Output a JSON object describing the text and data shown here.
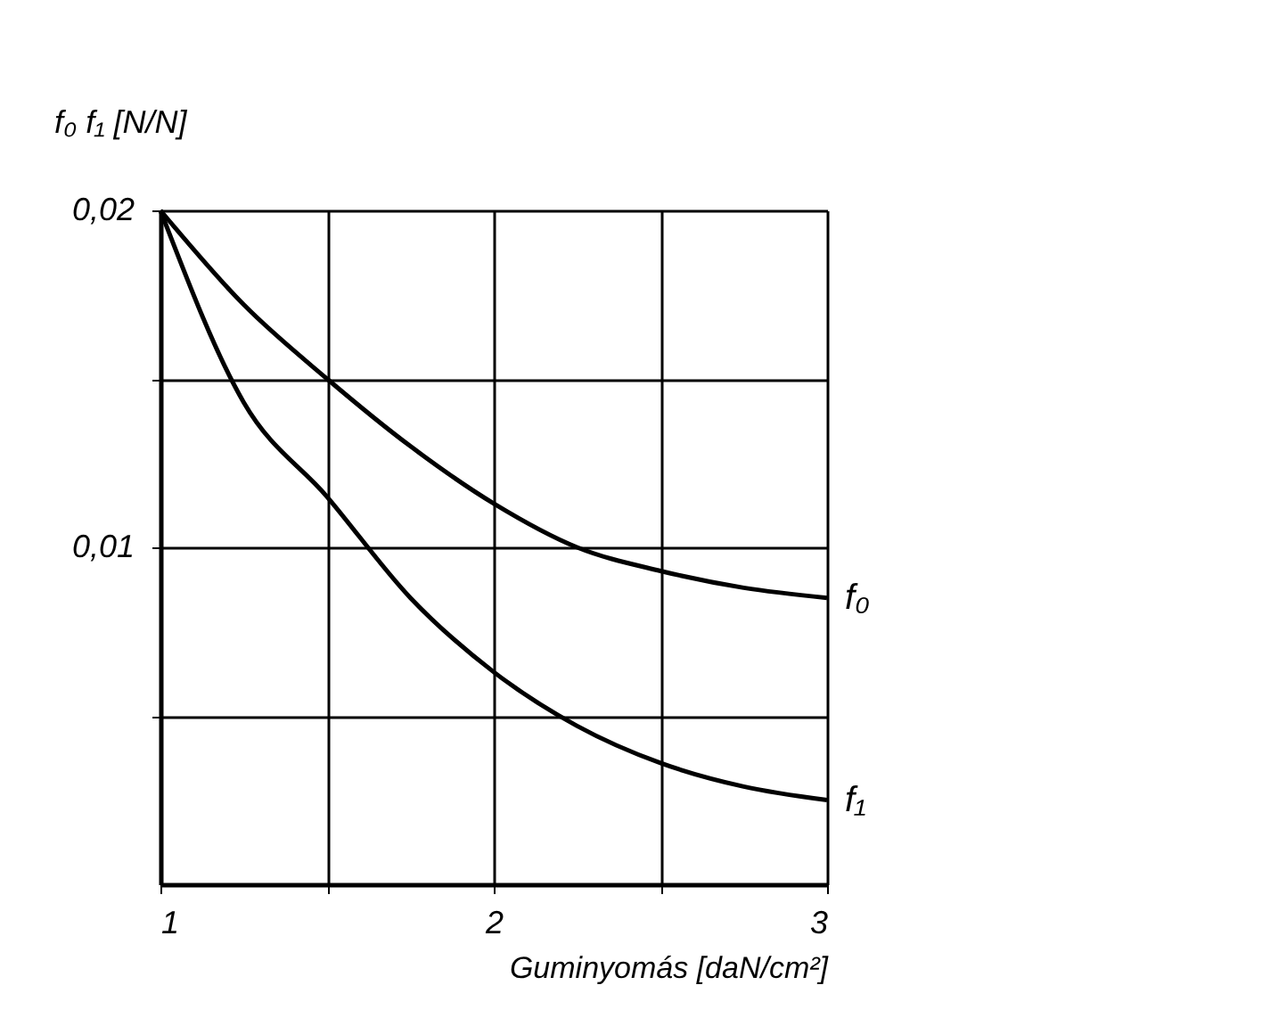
{
  "chart_data": {
    "type": "line",
    "ylabel": "f₀ f₁ [N/N]",
    "xlabel": "Guminyomás [daN/cm²]",
    "xlim": [
      1,
      3
    ],
    "xticks": [
      1,
      {
        "value": 1.5,
        "label": null
      },
      2,
      {
        "value": 2.5,
        "label": null
      },
      3
    ],
    "ylim": [
      0,
      0.02
    ],
    "yticks": [
      {
        "value": 0.005,
        "label": null
      },
      {
        "value": 0.01,
        "label": "0,01"
      },
      {
        "value": 0.015,
        "label": null
      },
      {
        "value": 0.02,
        "label": "0,02"
      }
    ],
    "grid": true,
    "legend": false,
    "marker": "none",
    "line_style": "solid",
    "series": [
      {
        "name": "f₀",
        "color": "#000000",
        "x": [
          1,
          1.25,
          1.5,
          1.75,
          2,
          2.25,
          2.5,
          2.75,
          3
        ],
        "values": [
          0.02,
          0.0172,
          0.015,
          0.013,
          0.0113,
          0.01,
          0.0093,
          0.0088,
          0.0085
        ]
      },
      {
        "name": "f₁",
        "color": "#000000",
        "x": [
          1,
          1.25,
          1.5,
          1.75,
          2,
          2.25,
          2.5,
          2.75,
          3
        ],
        "values": [
          0.02,
          0.0143,
          0.0115,
          0.0085,
          0.0063,
          0.0047,
          0.0036,
          0.0029,
          0.0025
        ]
      }
    ]
  }
}
